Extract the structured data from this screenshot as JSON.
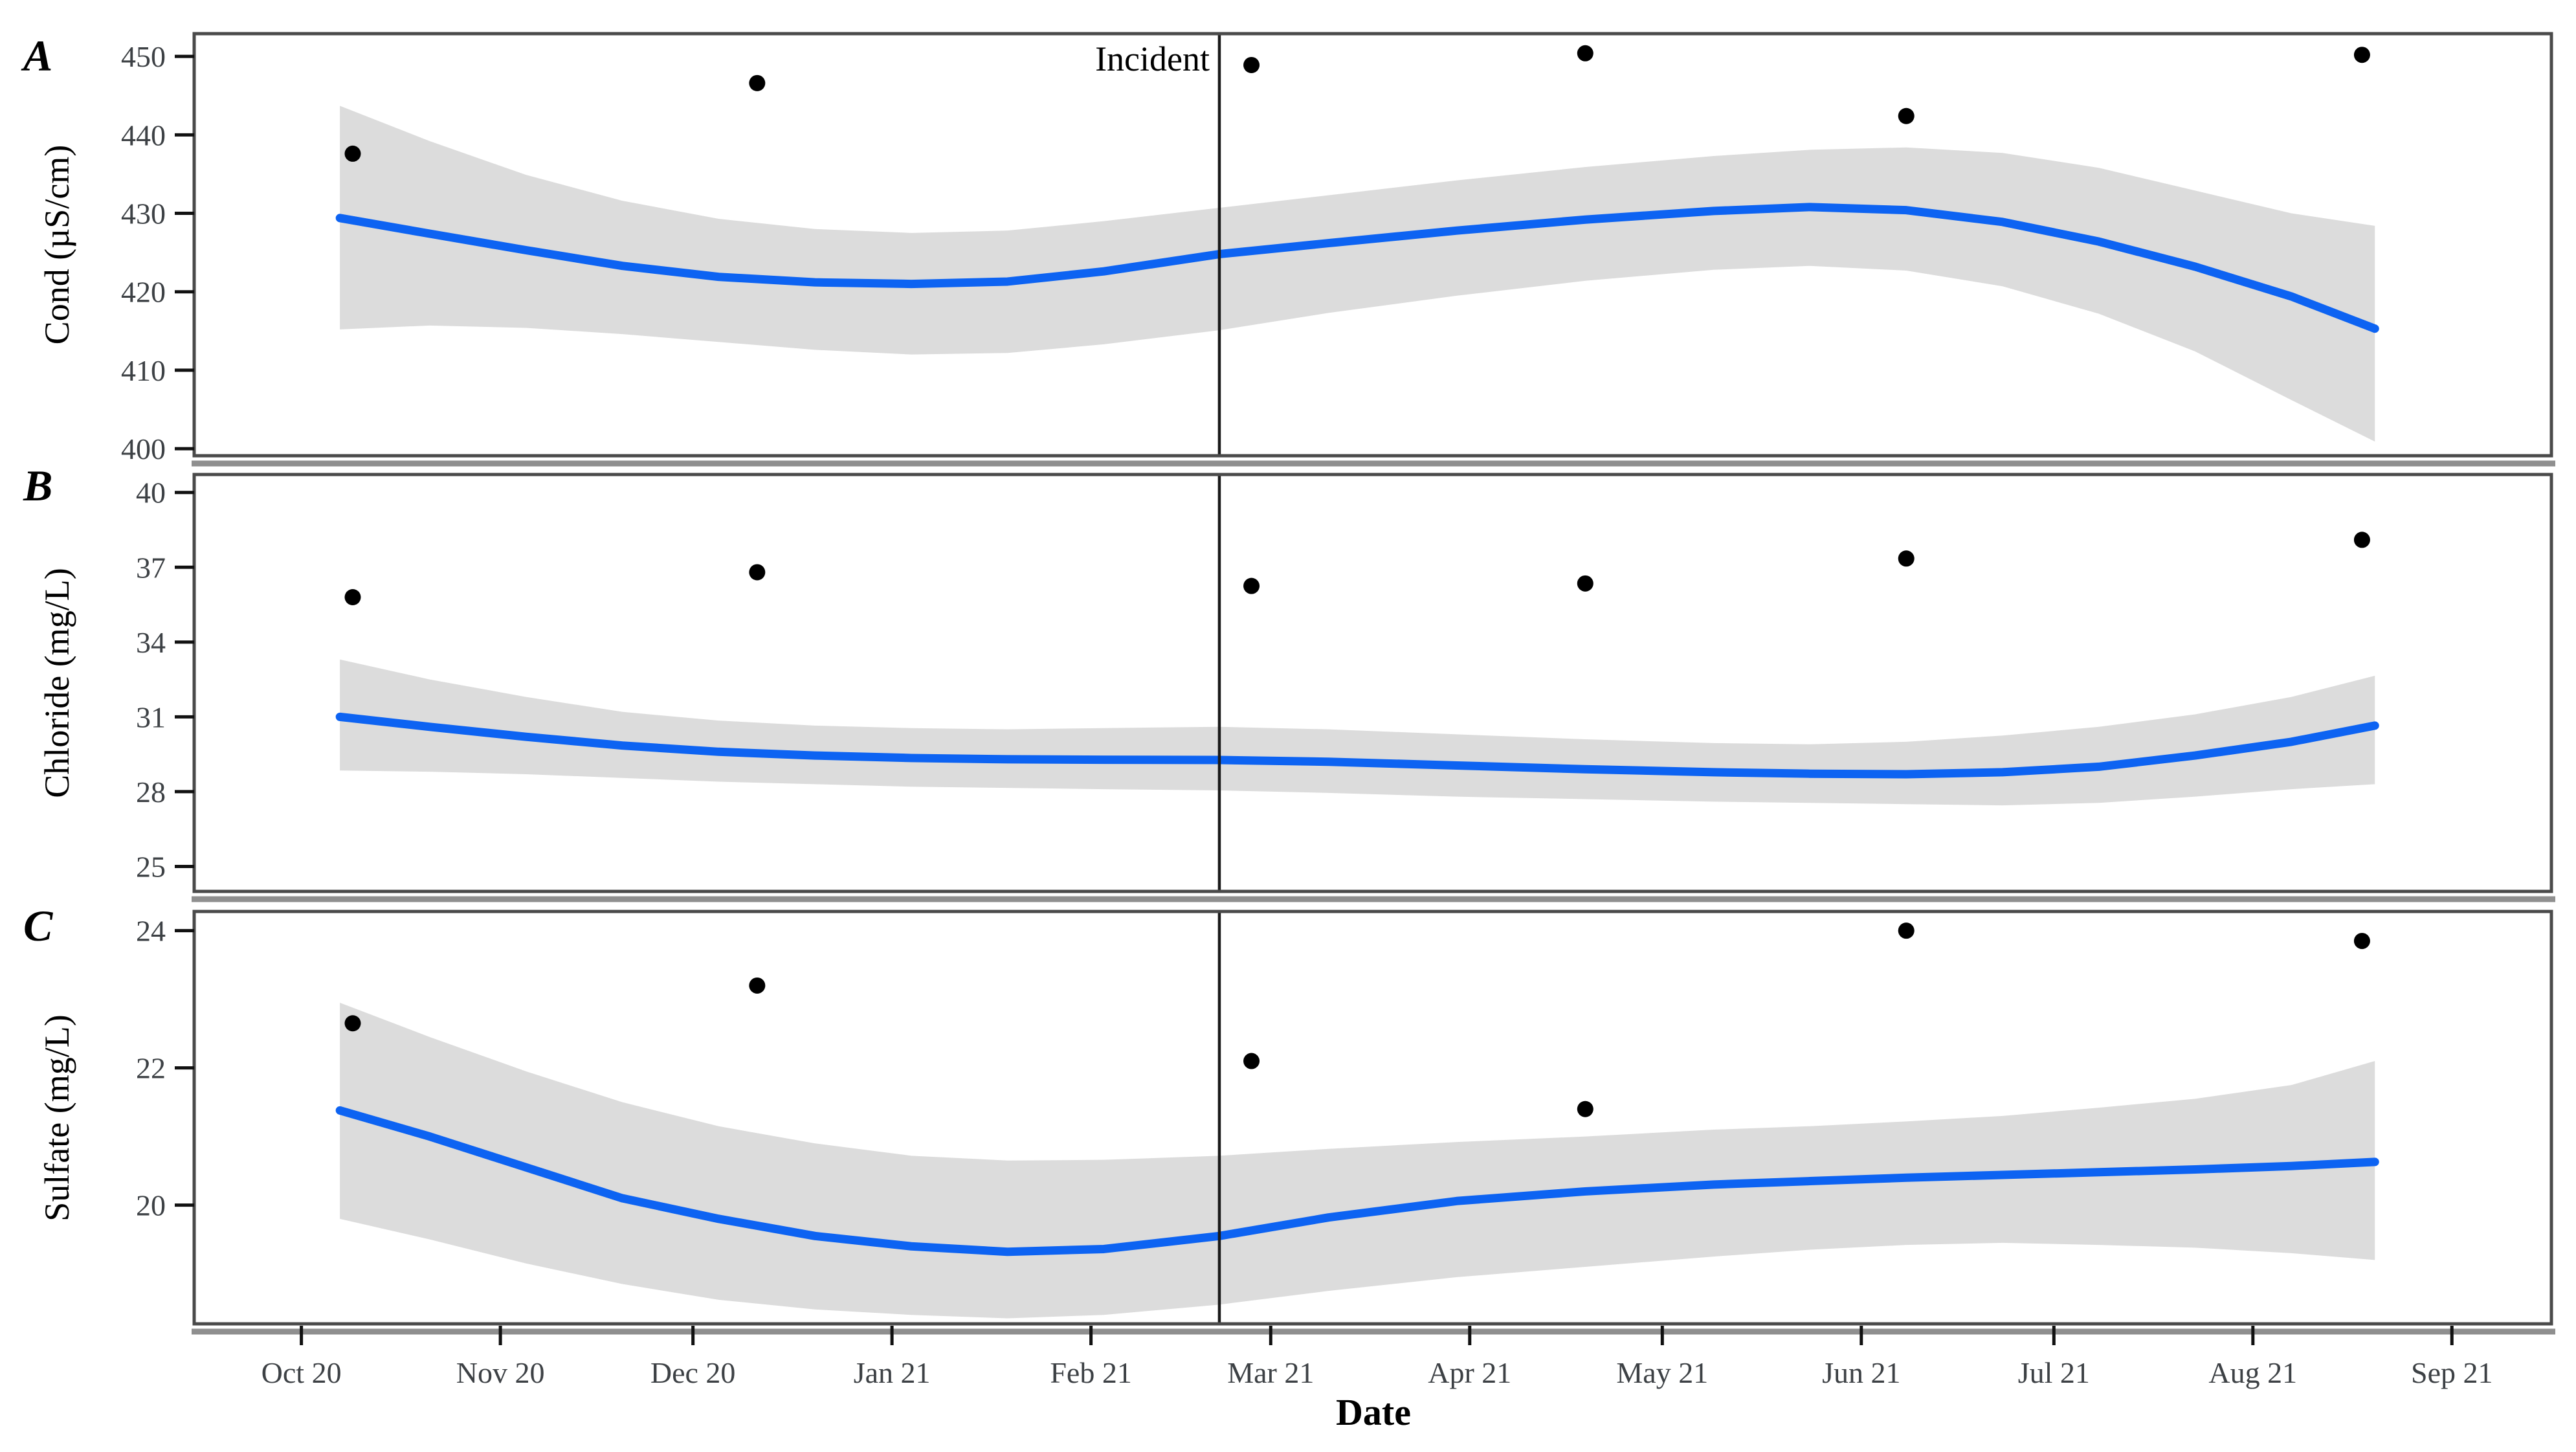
{
  "x_axis": {
    "title": "Date",
    "xlim": [
      -16.7,
      350.5
    ],
    "x_unit": "days since 2020-10-01",
    "ticks": {
      "days": [
        0,
        31,
        61,
        92,
        123,
        151,
        182,
        212,
        243,
        273,
        304,
        335
      ],
      "labels": [
        "Oct 20",
        "Nov 20",
        "Dec 20",
        "Jan 21",
        "Feb 21",
        "Mar 21",
        "Apr 21",
        "May 21",
        "Jun 21",
        "Jul 21",
        "Aug 21",
        "Sep 21"
      ]
    }
  },
  "incident": {
    "label": "Incident",
    "x": 143,
    "date_approx": "2021-02-20"
  },
  "colors": {
    "smooth_line": "#0d63f2",
    "ci_band": "#dcdcdc",
    "point": "#000000",
    "incident_line": "#1a1a1a",
    "panel_border": "#4a4a4a",
    "axis_shadow": "#8f8f8f",
    "tick_mark": "#111111",
    "tick_label": "#3d4145",
    "title_text": "#000000"
  },
  "chart_data": [
    {
      "type": "scatter",
      "panel_label": "A",
      "ylabel": "Cond (µS/cm)",
      "xlabel": "Date",
      "ylim": [
        399.1,
        452.9
      ],
      "yticks": [
        400,
        410,
        420,
        430,
        440,
        450
      ],
      "points": {
        "x": [
          8,
          71,
          148,
          200,
          250,
          321
        ],
        "y": [
          437.6,
          446.6,
          448.9,
          450.4,
          442.4,
          450.2
        ]
      },
      "smooth_line": {
        "x": [
          6,
          20,
          35,
          50,
          65,
          80,
          95,
          110,
          125,
          143,
          160,
          180,
          200,
          220,
          235,
          250,
          265,
          280,
          295,
          310,
          323
        ],
        "y": [
          429.4,
          427.4,
          425.3,
          423.3,
          421.9,
          421.2,
          421.0,
          421.3,
          422.6,
          424.8,
          426.2,
          427.8,
          429.2,
          430.3,
          430.8,
          430.4,
          428.9,
          426.4,
          423.2,
          419.4,
          415.3
        ]
      },
      "ci_band": {
        "x": [
          6,
          20,
          35,
          50,
          65,
          80,
          95,
          110,
          125,
          143,
          160,
          180,
          200,
          220,
          235,
          250,
          265,
          280,
          295,
          310,
          323
        ],
        "upper": [
          443.7,
          439.2,
          434.9,
          431.6,
          429.3,
          428.0,
          427.5,
          427.8,
          429.0,
          430.7,
          432.3,
          434.2,
          435.9,
          437.3,
          438.1,
          438.4,
          437.7,
          435.8,
          432.9,
          430.0,
          428.4
        ],
        "lower": [
          415.2,
          415.7,
          415.4,
          414.6,
          413.6,
          412.6,
          412.0,
          412.2,
          413.3,
          415.1,
          417.3,
          419.5,
          421.4,
          422.8,
          423.3,
          422.7,
          420.7,
          417.2,
          412.4,
          406.2,
          400.9
        ]
      }
    },
    {
      "type": "scatter",
      "panel_label": "B",
      "ylabel": "Chloride (mg/L)",
      "xlabel": "Date",
      "ylim": [
        24.0,
        40.72
      ],
      "yticks": [
        25,
        28,
        31,
        34,
        37,
        40
      ],
      "points": {
        "x": [
          8,
          71,
          148,
          200,
          250,
          321
        ],
        "y": [
          35.8,
          36.8,
          36.25,
          36.35,
          37.35,
          38.1
        ]
      },
      "smooth_line": {
        "x": [
          6,
          20,
          35,
          50,
          65,
          80,
          95,
          110,
          125,
          143,
          160,
          180,
          200,
          220,
          235,
          250,
          265,
          280,
          295,
          310,
          323
        ],
        "y": [
          31.0,
          30.6,
          30.2,
          29.85,
          29.6,
          29.45,
          29.35,
          29.3,
          29.28,
          29.27,
          29.2,
          29.05,
          28.9,
          28.78,
          28.72,
          28.7,
          28.78,
          29.0,
          29.45,
          30.0,
          30.65
        ]
      },
      "ci_band": {
        "x": [
          6,
          20,
          35,
          50,
          65,
          80,
          95,
          110,
          125,
          143,
          160,
          180,
          200,
          220,
          235,
          250,
          265,
          280,
          295,
          310,
          323
        ],
        "upper": [
          33.3,
          32.5,
          31.8,
          31.2,
          30.85,
          30.65,
          30.55,
          30.5,
          30.55,
          30.6,
          30.5,
          30.3,
          30.1,
          29.95,
          29.9,
          30.0,
          30.25,
          30.6,
          31.1,
          31.8,
          32.65
        ],
        "lower": [
          28.85,
          28.8,
          28.7,
          28.55,
          28.4,
          28.3,
          28.2,
          28.15,
          28.1,
          28.05,
          27.95,
          27.8,
          27.7,
          27.6,
          27.55,
          27.5,
          27.45,
          27.55,
          27.8,
          28.1,
          28.3
        ]
      }
    },
    {
      "type": "scatter",
      "panel_label": "C",
      "ylabel": "Sulfate (mg/L)",
      "xlabel": "Date",
      "ylim": [
        18.27,
        24.28
      ],
      "yticks": [
        20,
        22,
        24
      ],
      "points": {
        "x": [
          8,
          71,
          148,
          200,
          250,
          321
        ],
        "y": [
          22.65,
          23.2,
          22.1,
          21.4,
          24.0,
          23.85
        ]
      },
      "smooth_line": {
        "x": [
          6,
          20,
          35,
          50,
          65,
          80,
          95,
          110,
          125,
          143,
          160,
          180,
          200,
          220,
          235,
          250,
          265,
          280,
          295,
          310,
          323
        ],
        "y": [
          21.38,
          21.0,
          20.55,
          20.1,
          19.8,
          19.55,
          19.4,
          19.32,
          19.36,
          19.55,
          19.82,
          20.06,
          20.2,
          20.3,
          20.35,
          20.4,
          20.44,
          20.48,
          20.52,
          20.57,
          20.63
        ]
      },
      "ci_band": {
        "x": [
          6,
          20,
          35,
          50,
          65,
          80,
          95,
          110,
          125,
          143,
          160,
          180,
          200,
          220,
          235,
          250,
          265,
          280,
          295,
          310,
          323
        ],
        "upper": [
          22.95,
          22.45,
          21.95,
          21.5,
          21.15,
          20.9,
          20.72,
          20.65,
          20.66,
          20.72,
          20.82,
          20.92,
          21.0,
          21.1,
          21.15,
          21.22,
          21.3,
          21.42,
          21.55,
          21.75,
          22.1
        ],
        "lower": [
          19.8,
          19.5,
          19.15,
          18.85,
          18.62,
          18.48,
          18.4,
          18.35,
          18.4,
          18.55,
          18.75,
          18.95,
          19.1,
          19.25,
          19.35,
          19.42,
          19.45,
          19.42,
          19.38,
          19.3,
          19.2
        ]
      }
    }
  ]
}
